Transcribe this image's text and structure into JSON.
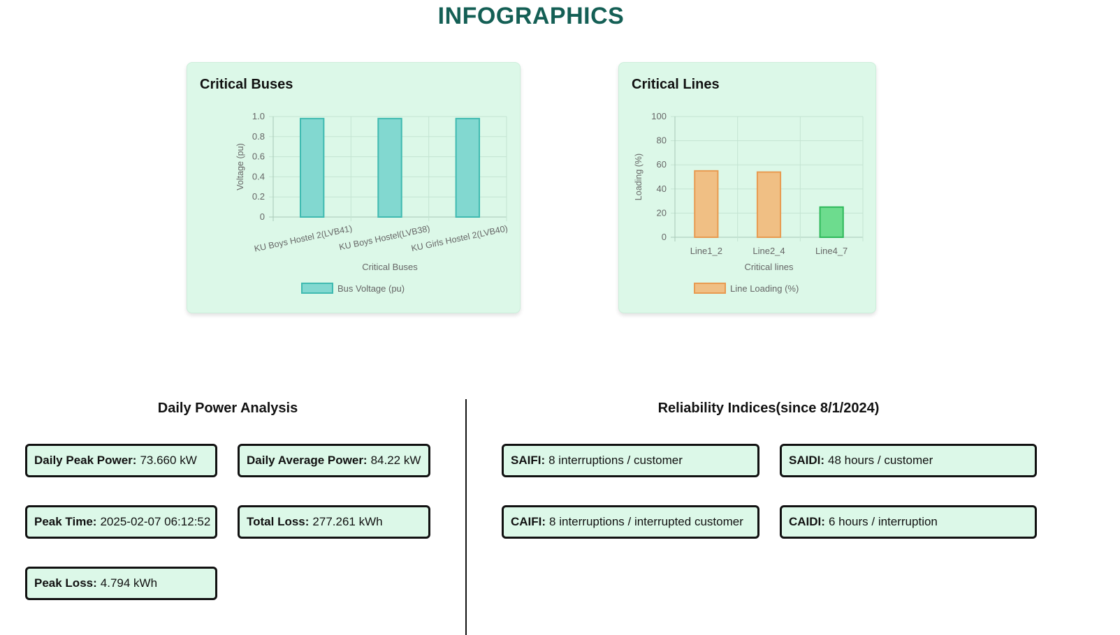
{
  "page": {
    "title": "INFOGRAPHICS"
  },
  "colors": {
    "title": "#145f55",
    "card_bg": "#dcf8e8",
    "teal_fill": "#82d8d0",
    "teal_stroke": "#3fbab0",
    "orange_fill": "#f0bf84",
    "orange_stroke": "#e89a50",
    "green_fill": "#6ddc8e",
    "green_stroke": "#2eb85a"
  },
  "chart_data": [
    {
      "type": "bar",
      "title": "Critical Buses",
      "categories": [
        "KU Boys Hostel 2(LVB41)",
        "KU Boys Hostel(LVB38)",
        "KU Girls Hostel 2(LVB40)"
      ],
      "series": [
        {
          "name": "Bus Voltage (pu)",
          "values": [
            0.98,
            0.98,
            0.98
          ]
        }
      ],
      "xlabel": "Critical Buses",
      "ylabel": "Voltage (pu)",
      "ylim": [
        0,
        1.0
      ],
      "yticks": [
        "0",
        "0.2",
        "0.4",
        "0.6",
        "0.8",
        "1.0"
      ],
      "grid": true,
      "legend": "bottom"
    },
    {
      "type": "bar",
      "title": "Critical Lines",
      "categories": [
        "Line1_2",
        "Line2_4",
        "Line4_7"
      ],
      "series": [
        {
          "name": "Line Loading (%)",
          "values": [
            55,
            54,
            25
          ]
        }
      ],
      "xlabel": "Critical lines",
      "ylabel": "Loading (%)",
      "ylim": [
        0,
        100
      ],
      "yticks": [
        "0",
        "20",
        "40",
        "60",
        "80",
        "100"
      ],
      "grid": true,
      "legend": "bottom"
    }
  ],
  "power_analysis": {
    "heading": "Daily Power Analysis",
    "daily_peak_power": {
      "label": "Daily Peak Power:",
      "value": "73.660 kW"
    },
    "daily_average_power": {
      "label": "Daily Average Power:",
      "value": "84.22 kW"
    },
    "peak_time": {
      "label": "Peak Time:",
      "value": "2025-02-07 06:12:52"
    },
    "total_loss": {
      "label": "Total Loss:",
      "value": "277.261 kWh"
    },
    "peak_loss": {
      "label": "Peak Loss:",
      "value": "4.794 kWh"
    }
  },
  "reliability": {
    "heading": "Reliability Indices(since 8/1/2024)",
    "saifi": {
      "label": "SAIFI:",
      "value": "8 interruptions / customer"
    },
    "saidi": {
      "label": "SAIDI:",
      "value": "48 hours / customer"
    },
    "caifi": {
      "label": "CAIFI:",
      "value": "8 interruptions / interrupted customer"
    },
    "caidi": {
      "label": "CAIDI:",
      "value": "6 hours / interruption"
    }
  }
}
